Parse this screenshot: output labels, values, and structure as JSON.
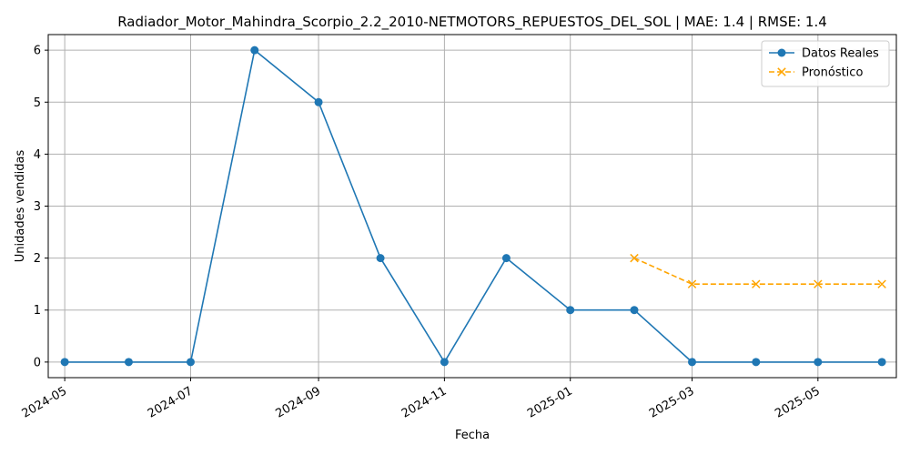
{
  "chart_data": {
    "type": "line",
    "title": "Radiador_Motor_Mahindra_Scorpio_2.2_2010-NETMOTORS_REPUESTOS_DEL_SOL | MAE: 1.4 | RMSE: 1.4",
    "xlabel": "Fecha",
    "ylabel": "Unidades vendidas",
    "x_ticks": [
      "2024-05",
      "2024-07",
      "2024-09",
      "2024-11",
      "2025-01",
      "2025-03",
      "2025-05"
    ],
    "y_ticks": [
      0,
      1,
      2,
      3,
      4,
      5,
      6
    ],
    "xlim": [
      "2024-04-23",
      "2025-06-08"
    ],
    "ylim": [
      -0.3,
      6.3
    ],
    "grid": true,
    "legend_position": "top-right",
    "series": [
      {
        "name": "Datos Reales",
        "color": "#1f77b4",
        "style": "solid",
        "marker": "circle",
        "x": [
          "2024-05-01",
          "2024-06-01",
          "2024-07-01",
          "2024-08-01",
          "2024-09-01",
          "2024-10-01",
          "2024-11-01",
          "2024-12-01",
          "2025-01-01",
          "2025-02-01",
          "2025-03-01",
          "2025-04-01",
          "2025-05-01",
          "2025-06-01"
        ],
        "values": [
          0,
          0,
          0,
          6,
          5,
          2,
          0,
          2,
          1,
          1,
          0,
          0,
          0,
          0
        ]
      },
      {
        "name": "Pronóstico",
        "color": "#ffa500",
        "style": "dashed",
        "marker": "x",
        "x": [
          "2025-02-01",
          "2025-03-01",
          "2025-04-01",
          "2025-05-01",
          "2025-06-01"
        ],
        "values": [
          2,
          1.5,
          1.5,
          1.5,
          1.5
        ]
      }
    ]
  }
}
